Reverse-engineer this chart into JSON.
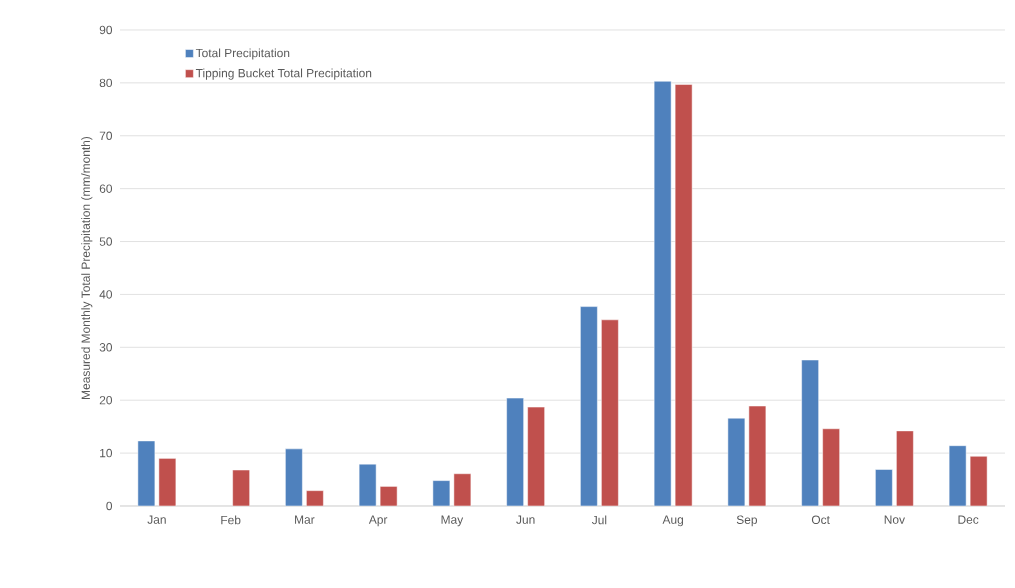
{
  "chart_data": {
    "type": "bar",
    "ylabel": "Measured Monthly Total Precipitation (mm/month)",
    "categories": [
      "Jan",
      "Feb",
      "Mar",
      "Apr",
      "May",
      "Jun",
      "Jul",
      "Aug",
      "Sep",
      "Oct",
      "Nov",
      "Dec"
    ],
    "series": [
      {
        "name": "Total Precipitation",
        "color": "#4f81bd",
        "values": [
          12.3,
          null,
          10.8,
          7.9,
          4.8,
          20.4,
          37.7,
          80.3,
          16.6,
          27.6,
          6.9,
          11.4
        ]
      },
      {
        "name": "Tipping Bucket Total Precipitation",
        "color": "#c0504d",
        "values": [
          9.0,
          6.8,
          2.9,
          3.7,
          6.1,
          18.7,
          35.2,
          79.7,
          18.9,
          14.6,
          14.2,
          9.4
        ]
      }
    ],
    "ylim": [
      0,
      90
    ],
    "yticks": [
      0,
      10,
      20,
      30,
      40,
      50,
      60,
      70,
      80,
      90
    ],
    "grid": "y",
    "legend": "top left"
  }
}
